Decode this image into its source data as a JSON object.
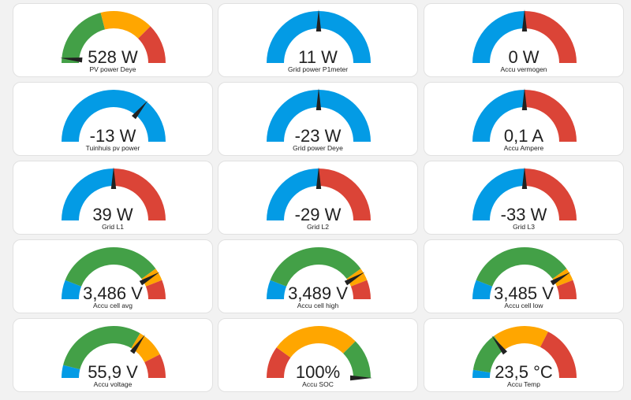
{
  "colors": {
    "blue": "#039be5",
    "green": "#43a047",
    "yellow": "#ffa600",
    "red": "#db4437",
    "needle": "#212121"
  },
  "gauges": [
    {
      "value": "528 W",
      "label": "PV power Deye",
      "fraction": 0.03,
      "segments": [
        {
          "from": 0,
          "to": 0.42,
          "color": "green"
        },
        {
          "from": 0.42,
          "to": 0.75,
          "color": "yellow"
        },
        {
          "from": 0.75,
          "to": 1,
          "color": "red"
        }
      ]
    },
    {
      "value": "11 W",
      "label": "Grid power P1meter",
      "fraction": 0.5,
      "segments": [
        {
          "from": 0,
          "to": 1,
          "color": "blue"
        }
      ]
    },
    {
      "value": "0 W",
      "label": "Accu vermogen",
      "fraction": 0.5,
      "segments": [
        {
          "from": 0,
          "to": 0.5,
          "color": "blue"
        },
        {
          "from": 0.5,
          "to": 1,
          "color": "red"
        }
      ]
    },
    {
      "value": "-13 W",
      "label": "Tuinhuis pv power",
      "fraction": 0.72,
      "segments": [
        {
          "from": 0,
          "to": 1,
          "color": "blue"
        }
      ]
    },
    {
      "value": "-23 W",
      "label": "Grid power Deye",
      "fraction": 0.5,
      "segments": [
        {
          "from": 0,
          "to": 1,
          "color": "blue"
        }
      ]
    },
    {
      "value": "0,1 A",
      "label": "Accu Ampere",
      "fraction": 0.5,
      "segments": [
        {
          "from": 0,
          "to": 0.5,
          "color": "blue"
        },
        {
          "from": 0.5,
          "to": 1,
          "color": "red"
        }
      ]
    },
    {
      "value": "39 W",
      "label": "Grid L1",
      "fraction": 0.5,
      "segments": [
        {
          "from": 0,
          "to": 0.5,
          "color": "blue"
        },
        {
          "from": 0.5,
          "to": 1,
          "color": "red"
        }
      ]
    },
    {
      "value": "-29 W",
      "label": "Grid L2",
      "fraction": 0.5,
      "segments": [
        {
          "from": 0,
          "to": 0.5,
          "color": "blue"
        },
        {
          "from": 0.5,
          "to": 1,
          "color": "red"
        }
      ]
    },
    {
      "value": "-33 W",
      "label": "Grid L3",
      "fraction": 0.5,
      "segments": [
        {
          "from": 0,
          "to": 0.5,
          "color": "blue"
        },
        {
          "from": 0.5,
          "to": 1,
          "color": "red"
        }
      ]
    },
    {
      "value": "3,486 V",
      "label": "Accu cell avg",
      "fraction": 0.83,
      "segments": [
        {
          "from": 0,
          "to": 0.12,
          "color": "blue"
        },
        {
          "from": 0.12,
          "to": 0.8,
          "color": "green"
        },
        {
          "from": 0.8,
          "to": 0.88,
          "color": "yellow"
        },
        {
          "from": 0.88,
          "to": 1,
          "color": "red"
        }
      ]
    },
    {
      "value": "3,489 V",
      "label": "Accu cell high",
      "fraction": 0.83,
      "segments": [
        {
          "from": 0,
          "to": 0.12,
          "color": "blue"
        },
        {
          "from": 0.12,
          "to": 0.8,
          "color": "green"
        },
        {
          "from": 0.8,
          "to": 0.88,
          "color": "yellow"
        },
        {
          "from": 0.88,
          "to": 1,
          "color": "red"
        }
      ]
    },
    {
      "value": "3,485 V",
      "label": "Accu cell low",
      "fraction": 0.83,
      "segments": [
        {
          "from": 0,
          "to": 0.12,
          "color": "blue"
        },
        {
          "from": 0.12,
          "to": 0.8,
          "color": "green"
        },
        {
          "from": 0.8,
          "to": 0.88,
          "color": "yellow"
        },
        {
          "from": 0.88,
          "to": 1,
          "color": "red"
        }
      ]
    },
    {
      "value": "55,9 V",
      "label": "Accu voltage",
      "fraction": 0.7,
      "segments": [
        {
          "from": 0,
          "to": 0.08,
          "color": "blue"
        },
        {
          "from": 0.08,
          "to": 0.67,
          "color": "green"
        },
        {
          "from": 0.67,
          "to": 0.85,
          "color": "yellow"
        },
        {
          "from": 0.85,
          "to": 1,
          "color": "red"
        }
      ]
    },
    {
      "value": "100%",
      "label": "Accu SOC",
      "fraction": 1.0,
      "segments": [
        {
          "from": 0,
          "to": 0.2,
          "color": "red"
        },
        {
          "from": 0.2,
          "to": 0.75,
          "color": "yellow"
        },
        {
          "from": 0.75,
          "to": 1,
          "color": "green"
        }
      ]
    },
    {
      "value": "23,5 °C",
      "label": "Accu Temp",
      "fraction": 0.29,
      "segments": [
        {
          "from": 0,
          "to": 0.05,
          "color": "blue"
        },
        {
          "from": 0.05,
          "to": 0.3,
          "color": "green"
        },
        {
          "from": 0.3,
          "to": 0.65,
          "color": "yellow"
        },
        {
          "from": 0.65,
          "to": 1,
          "color": "red"
        }
      ]
    }
  ]
}
